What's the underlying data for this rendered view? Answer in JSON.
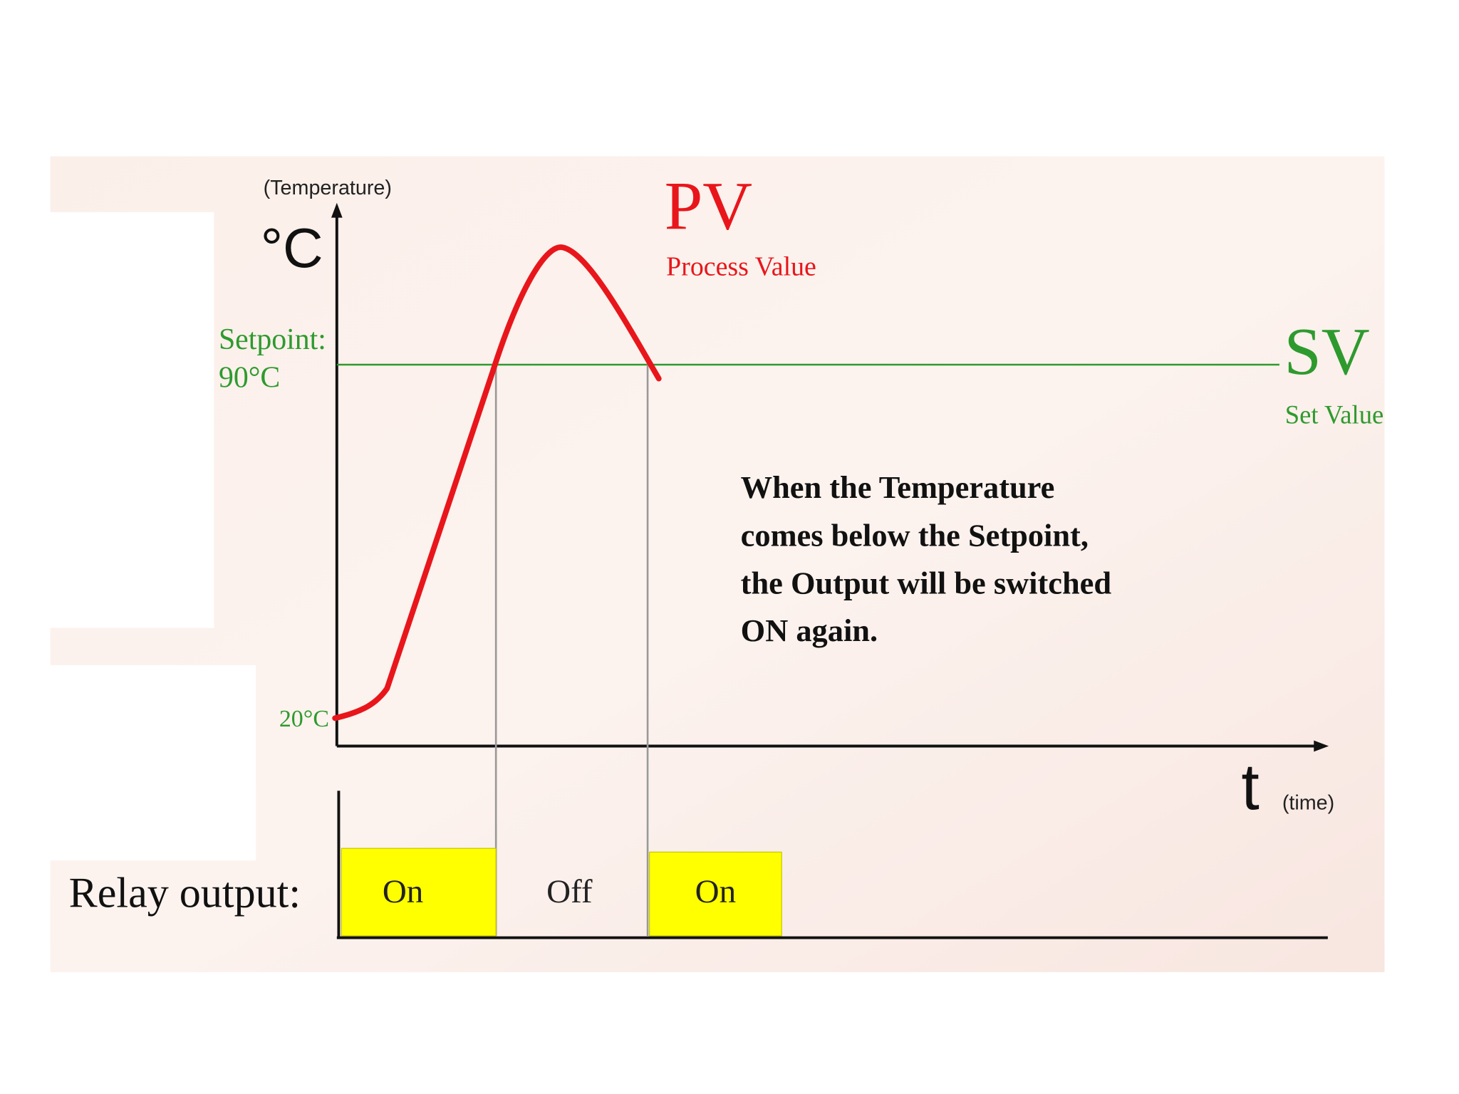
{
  "diagram": {
    "y_axis": {
      "label": "(Temperature)",
      "unit": "°C"
    },
    "pv": {
      "title": "PV",
      "subtitle": "Process Value"
    },
    "setpoint": {
      "label": "Setpoint:",
      "value": "90°C"
    },
    "sv": {
      "title": "SV",
      "subtitle": "Set Value"
    },
    "start_label": "20°C",
    "annotation": [
      "When the Temperature",
      "comes below the Setpoint,",
      "the Output will be switched",
      "ON again."
    ],
    "x_axis": {
      "symbol": "t",
      "label": "(time)"
    },
    "relay": {
      "label": "Relay output:",
      "states": [
        "On",
        "Off",
        "On"
      ]
    }
  }
}
